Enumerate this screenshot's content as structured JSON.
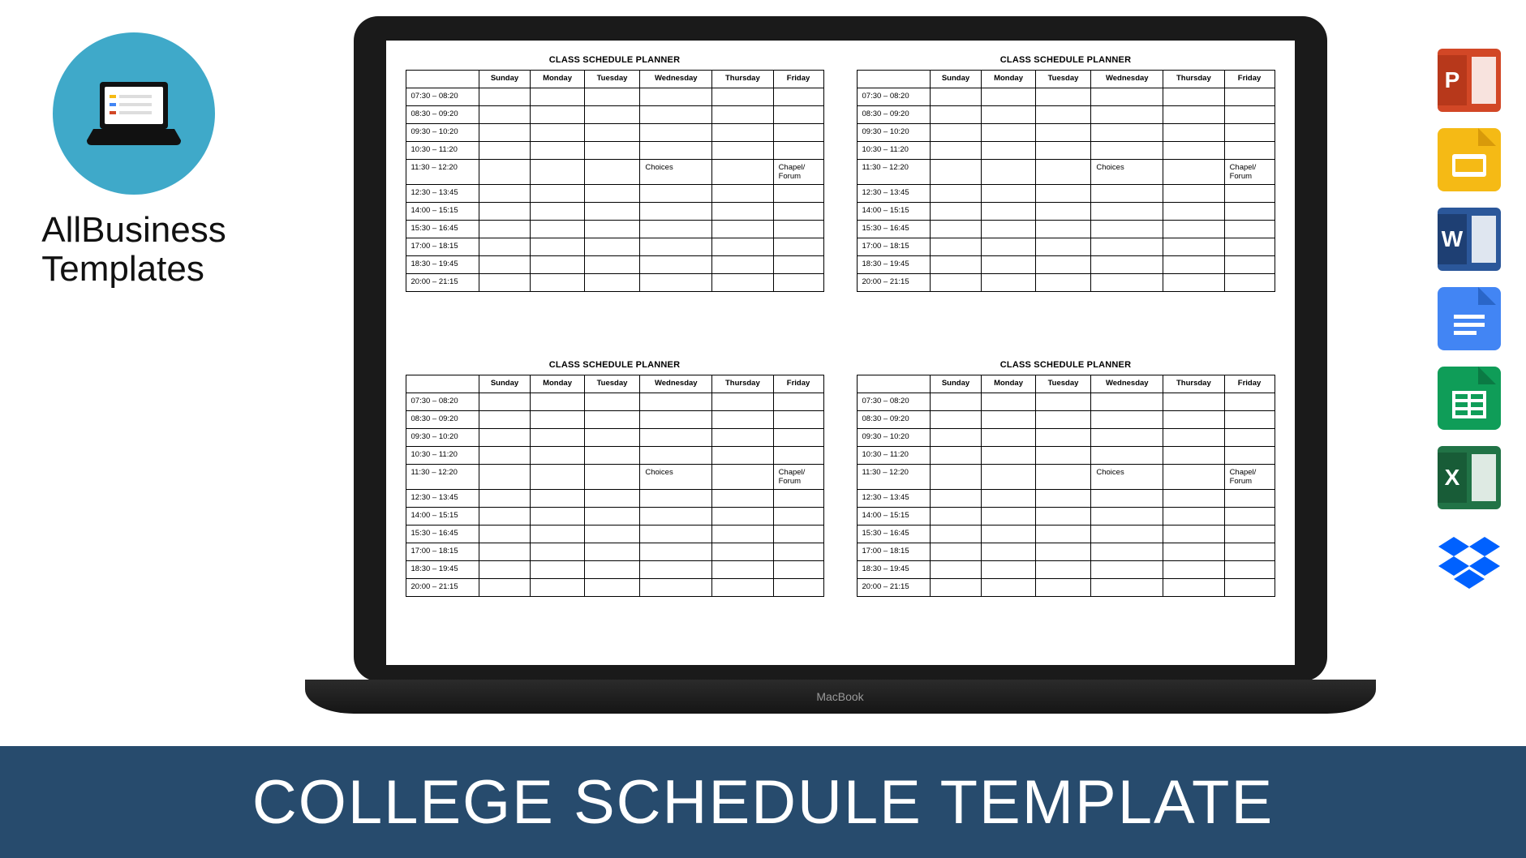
{
  "brand": {
    "line1": "AllBusiness",
    "line2": "Templates",
    "circle_bg": "#3fa9c9"
  },
  "laptop": {
    "label": "MacBook",
    "bezel_color": "#1a1a1a",
    "screen_bg": "#ffffff"
  },
  "schedule_template": {
    "title": "CLASS SCHEDULE PLANNER",
    "days": [
      "Sunday",
      "Monday",
      "Tuesday",
      "Wednesday",
      "Thursday",
      "Friday"
    ],
    "time_slots": [
      "07:30 – 08:20",
      "08:30 – 09:20",
      "09:30 – 10:20",
      "10:30 – 11:20",
      "11:30 – 12:20",
      "12:30 – 13:45",
      "14:00 – 15:15",
      "15:30 – 16:45",
      "17:00 – 18:15",
      "18:30 – 19:45",
      "20:00 – 21:15"
    ],
    "cells": {
      "4": {
        "Wednesday": "Choices",
        "Friday": "Chapel/\nForum"
      }
    },
    "border_color": "#000000",
    "font_size": 9.5,
    "title_font_size": 11,
    "copies": 4
  },
  "app_icons": [
    {
      "name": "powerpoint",
      "label": "P",
      "bg": "#d24726",
      "accent": "#b7381b"
    },
    {
      "name": "google-slides",
      "label": "",
      "bg": "#f5ba15",
      "accent": "#ffffff"
    },
    {
      "name": "word",
      "label": "W",
      "bg": "#2b579a",
      "accent": "#1e3f73"
    },
    {
      "name": "google-docs",
      "label": "",
      "bg": "#4285f4",
      "accent": "#ffffff"
    },
    {
      "name": "google-sheets",
      "label": "",
      "bg": "#0f9d58",
      "accent": "#ffffff"
    },
    {
      "name": "excel",
      "label": "X",
      "bg": "#217346",
      "accent": "#185c37"
    },
    {
      "name": "dropbox",
      "label": "",
      "bg": "transparent",
      "accent": "#0061ff"
    }
  ],
  "banner": {
    "text": "COLLEGE SCHEDULE TEMPLATE",
    "bg": "#274b6d",
    "fg": "#ffffff",
    "font_size": 76
  }
}
